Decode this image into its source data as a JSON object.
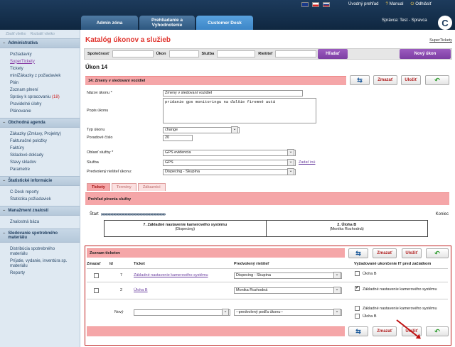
{
  "topbar": {
    "links": [
      "Úvodný prehľad",
      "Manual",
      "Odhlásiť"
    ],
    "user": "Správca: Test - Spravca",
    "logo": "C"
  },
  "tabs": [
    {
      "label": "Admin zóna"
    },
    {
      "label": "Prehliadanie a Vyhodnotenie"
    },
    {
      "label": "Customer Desk"
    }
  ],
  "sidebar": {
    "top": [
      "Zbaliť všetko",
      "Rozbaliť všetko"
    ],
    "sections": [
      {
        "title": "Administratíva",
        "items": [
          "Požiadavky",
          "SuperTickety",
          "Tickety",
          "miniZákazky z požiadaviek",
          "Plán",
          "Zoznam plnení",
          "Správy k spracovaniu",
          "Pravidelné úlohy",
          "Plánovanie"
        ],
        "badge": "(18)"
      },
      {
        "title": "Obchodná agenda",
        "items": [
          "Zákazky (Zmluvy, Projekty)",
          "Fakturačné položky",
          "Faktúry",
          "Skladové doklady",
          "Stavy skladov",
          "Parametre"
        ]
      },
      {
        "title": "Štatistické informácie",
        "items": [
          "C-Desk reporty",
          "Štatistika požiadaviek"
        ]
      },
      {
        "title": "Manažment znalostí",
        "items": [
          "Znalostná báza"
        ]
      },
      {
        "title": "Sledovanie spotrebného materiálu",
        "items": [
          "Distribúcia spotrebného materiálu",
          "Príjatie, vydanie, inventúra sp. materiálu",
          "Reporty"
        ]
      }
    ]
  },
  "main": {
    "title": "Katalóg úkonov a služieb",
    "super_link": "SuperTickety",
    "filter": {
      "labels": [
        "Spoločnosť",
        "Úkon",
        "Služba",
        "Riešiteľ"
      ],
      "search": "Hľadať",
      "new": "Nový úkon"
    },
    "section": "Úkon 14",
    "bar_title": "14: Zmeny v sledovaní vozidiel",
    "actions": {
      "delete": "Zmazať",
      "save": "Uložiť"
    },
    "form": {
      "name_label": "Názov úkonu *",
      "name_value": "Zmeny v sledovaní vozidiel",
      "desc_label": "Popis úkonu",
      "desc_value": "pridanie gps monitoringu na ďalšie firemné autá",
      "type_label": "Typ úkonu",
      "type_value": "change",
      "order_label": "Poradové číslo",
      "order_value": "20",
      "area_label": "Oblasť služby *",
      "area_value": "GPS evidencia",
      "service_label": "Služba",
      "service_value": "GPS",
      "service_link": "Zadať inú",
      "solver_label": "Predvolený riešiteľ úkonu:",
      "solver_value": "Dispecing - Skupina"
    },
    "subtabs": [
      "Tickety",
      "Termíny",
      "Zákazníci"
    ],
    "flow_bar": "Prehľad plnenia služby",
    "flow": {
      "start": "Štart",
      "end": "Koniec",
      "cells": [
        {
          "title": "7. Základné nastavenie kamerového systému",
          "sub": "(Dispecing)"
        },
        {
          "title": "2. Úloha B",
          "sub": "(Monika Rozhodná)"
        }
      ]
    },
    "tickets": {
      "title": "Zoznam ticketov",
      "headers": [
        "Zmazať",
        "Id",
        "Ticket",
        "Predvolený riešiteľ",
        "Vyžadované ukončenie IT pred začiatkom"
      ],
      "rows": [
        {
          "id": "7",
          "ticket": "Základné nastavenie kamerového systému",
          "solver": "Dispecing - Skupina",
          "req": "Úloha B",
          "checked": false
        },
        {
          "id": "2",
          "ticket": "Úloha B",
          "solver": "Monika Rozhodná",
          "req": "Základné nastavenie kamerového systému",
          "checked": true
        }
      ],
      "new_label": "Nový",
      "new_solver": "--predvolený podľa úkonu--",
      "new_reqs": [
        "Základné nastavenie kamerového systému",
        "Úloha B"
      ]
    }
  }
}
